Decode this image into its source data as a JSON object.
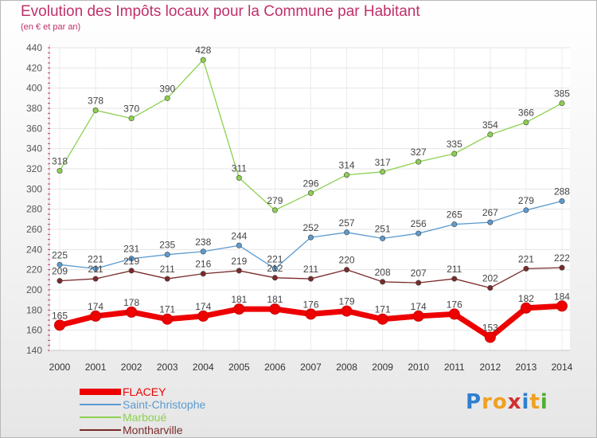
{
  "header": {
    "title": "Evolution des Impôts locaux pour la Commune par Habitant",
    "subtitle": "(en € et par an)"
  },
  "logo": {
    "text": "Proxiti",
    "letters": [
      "P",
      "r",
      "o",
      "x",
      "i",
      "t",
      "i"
    ],
    "colors": [
      "#2f7fd0",
      "#f0a020",
      "#f0a020",
      "#d03030",
      "#2f7fd0",
      "#f0a020",
      "#50b030"
    ]
  },
  "chart_data": {
    "type": "line",
    "title": "Evolution des Impôts locaux pour la Commune par Habitant",
    "subtitle": "(en € et par an)",
    "xlabel": "",
    "ylabel": "",
    "categories": [
      "2000",
      "2001",
      "2002",
      "2003",
      "2004",
      "2005",
      "2006",
      "2007",
      "2008",
      "2009",
      "2010",
      "2011",
      "2012",
      "2013",
      "2014"
    ],
    "ylim": [
      140,
      440
    ],
    "yticks": [
      140,
      160,
      180,
      200,
      220,
      240,
      260,
      280,
      300,
      320,
      340,
      360,
      380,
      400,
      420,
      440
    ],
    "grid": true,
    "legend_position": "bottom-left",
    "series": [
      {
        "name": "Marboué",
        "color": "#8cd14f",
        "values": [
          318,
          378,
          370,
          390,
          428,
          311,
          279,
          296,
          314,
          317,
          327,
          335,
          354,
          366,
          385
        ]
      },
      {
        "name": "Saint-Christophe",
        "color": "#5b9bd0",
        "values": [
          225,
          221,
          231,
          235,
          238,
          244,
          221,
          252,
          257,
          251,
          256,
          265,
          267,
          279,
          288
        ]
      },
      {
        "name": "Montharville",
        "color": "#7a2a2a",
        "values": [
          209,
          211,
          219,
          211,
          216,
          219,
          212,
          211,
          220,
          208,
          207,
          211,
          202,
          221,
          222
        ]
      },
      {
        "name": "FLACEY",
        "color": "#ee0000",
        "values": [
          165,
          174,
          178,
          171,
          174,
          181,
          181,
          176,
          179,
          171,
          174,
          176,
          153,
          182,
          184
        ]
      }
    ],
    "legend_order": [
      "FLACEY",
      "Saint-Christophe",
      "Marboué",
      "Montharville"
    ]
  }
}
